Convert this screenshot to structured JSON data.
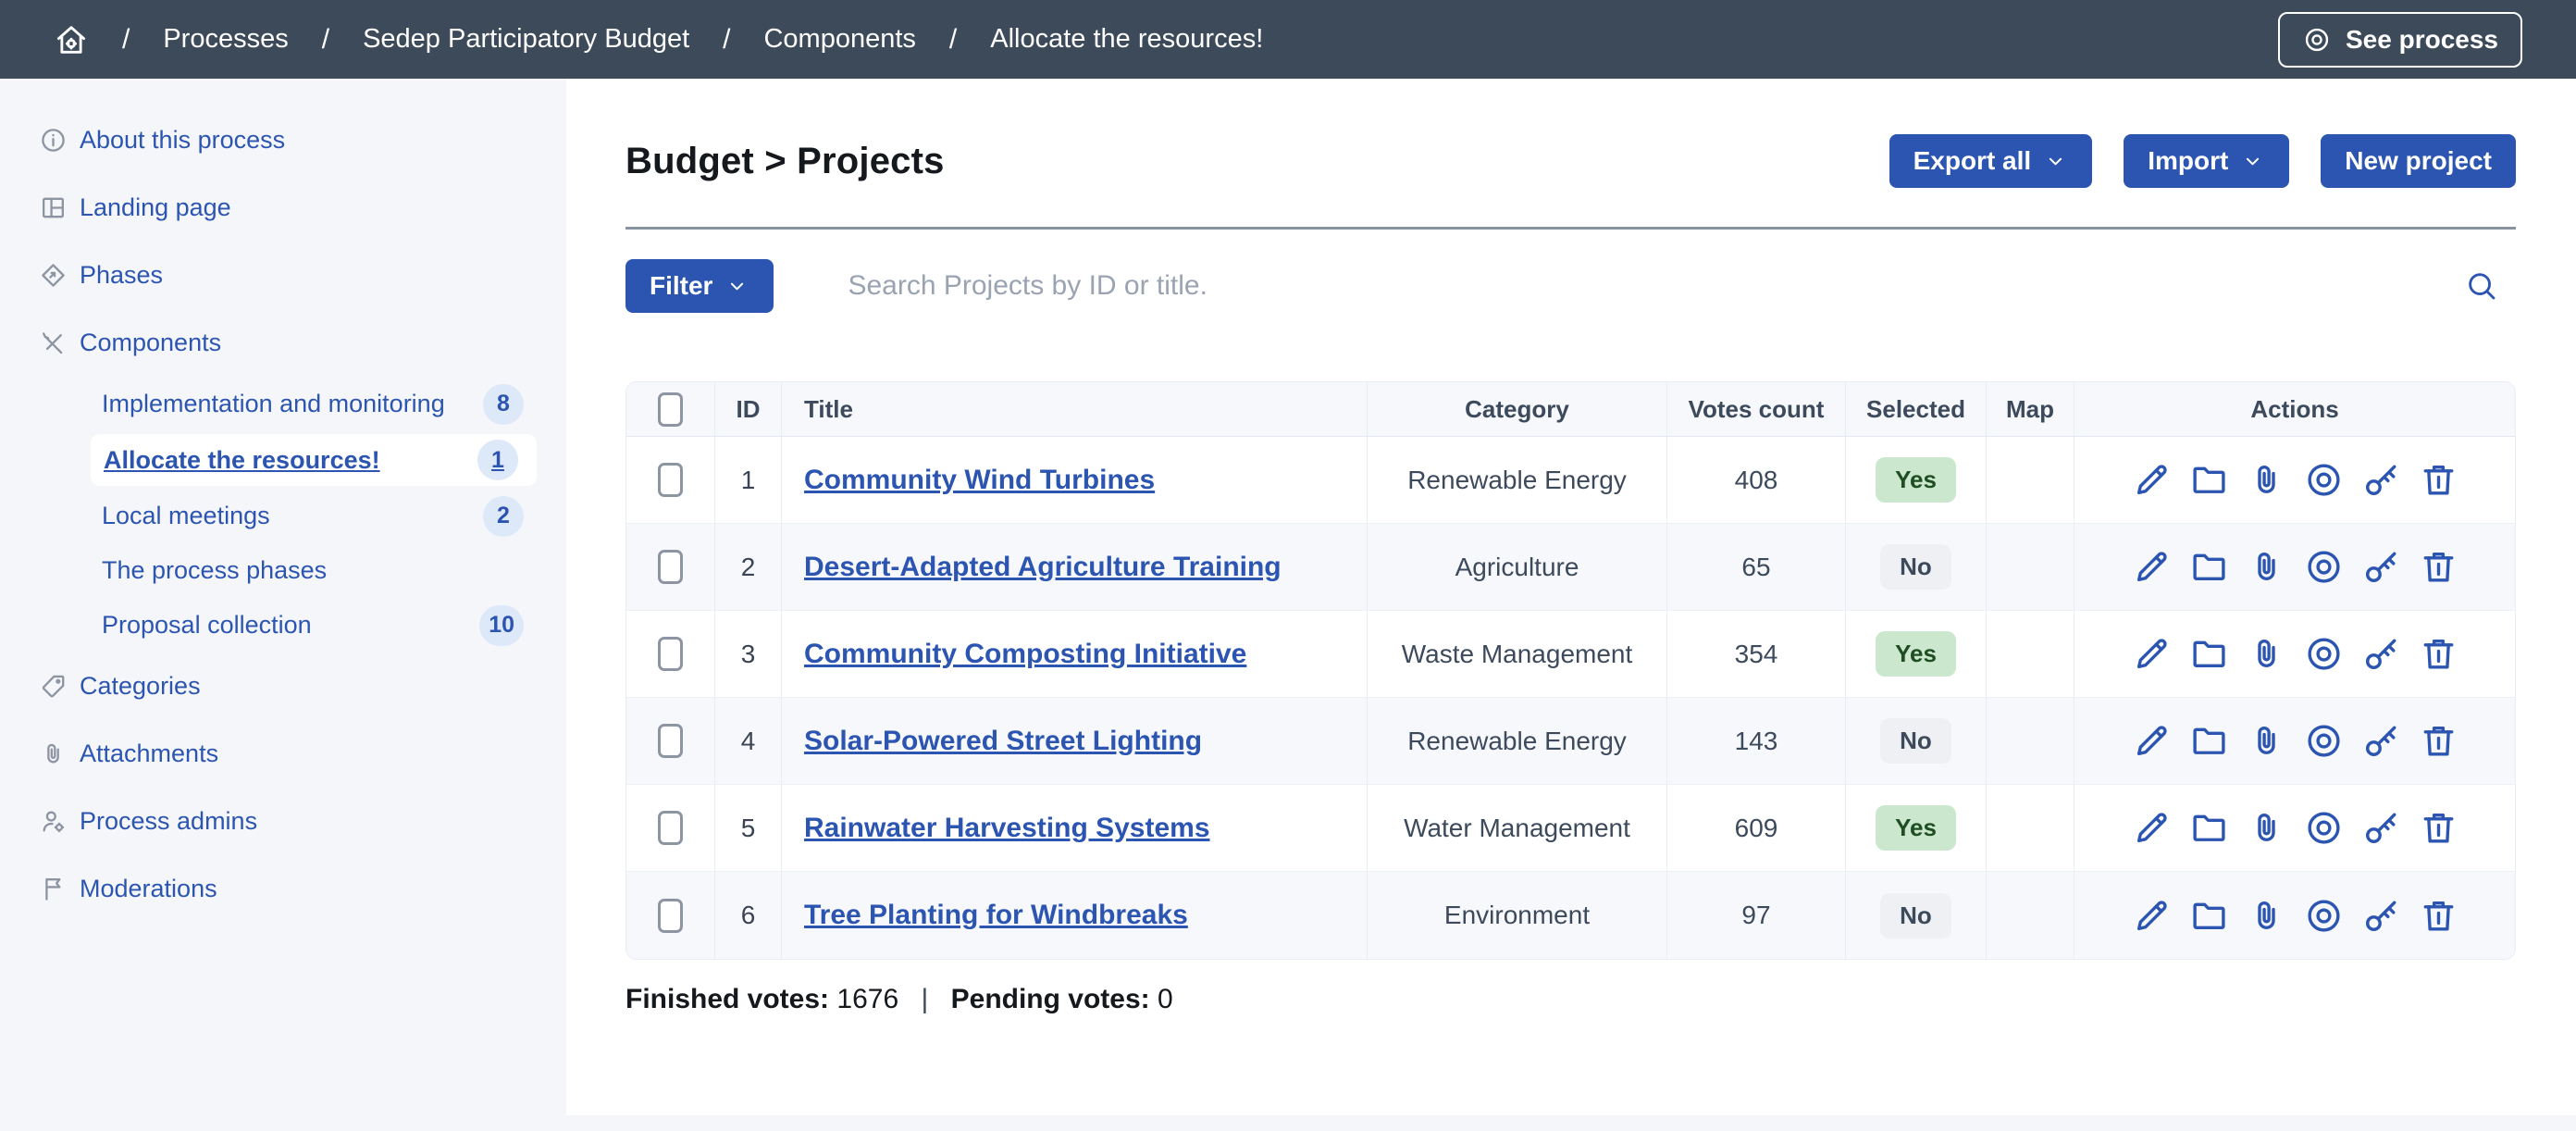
{
  "topbar": {
    "breadcrumb": [
      "Processes",
      "Sedep Participatory Budget",
      "Components",
      "Allocate the resources!"
    ],
    "separator": "/",
    "see_process_label": "See process"
  },
  "sidebar": {
    "items": [
      {
        "label": "About this process",
        "icon": "info-icon"
      },
      {
        "label": "Landing page",
        "icon": "landing-page-icon"
      },
      {
        "label": "Phases",
        "icon": "phases-icon"
      },
      {
        "label": "Components",
        "icon": "components-icon",
        "children": [
          {
            "label": "Implementation and monitoring",
            "badge": "8",
            "active": false
          },
          {
            "label": "Allocate the resources!",
            "badge": "1",
            "active": true
          },
          {
            "label": "Local meetings",
            "badge": "2",
            "active": false
          },
          {
            "label": "The process phases",
            "badge": null,
            "active": false
          },
          {
            "label": "Proposal collection",
            "badge": "10",
            "active": false
          }
        ]
      }
    ],
    "bottom_items": [
      {
        "label": "Categories",
        "icon": "categories-tag-icon"
      },
      {
        "label": "Attachments",
        "icon": "attachments-paperclip-icon"
      },
      {
        "label": "Process admins",
        "icon": "process-admins-icon"
      },
      {
        "label": "Moderations",
        "icon": "moderations-flag-icon"
      }
    ]
  },
  "main": {
    "title": "Budget > Projects",
    "toolbar": {
      "export_all": "Export all",
      "import": "Import",
      "new_project": "New project"
    },
    "filter": {
      "label": "Filter",
      "search_placeholder": "Search Projects by ID or title."
    },
    "table": {
      "headers": [
        "ID",
        "Title",
        "Category",
        "Votes count",
        "Selected",
        "Map",
        "Actions"
      ],
      "row_actions": [
        {
          "name": "edit",
          "icon": "pencil-icon"
        },
        {
          "name": "folders",
          "icon": "folder-icon"
        },
        {
          "name": "attachments",
          "icon": "paperclip-icon"
        },
        {
          "name": "preview",
          "icon": "preview-eye-icon"
        },
        {
          "name": "permissions",
          "icon": "key-icon"
        },
        {
          "name": "delete",
          "icon": "trash-icon"
        }
      ],
      "rows": [
        {
          "id": "1",
          "title": "Community Wind Turbines",
          "category": "Renewable Energy",
          "votes": "408",
          "selected": "Yes"
        },
        {
          "id": "2",
          "title": "Desert-Adapted Agriculture Training",
          "category": "Agriculture",
          "votes": "65",
          "selected": "No"
        },
        {
          "id": "3",
          "title": "Community Composting Initiative",
          "category": "Waste Management",
          "votes": "354",
          "selected": "Yes"
        },
        {
          "id": "4",
          "title": "Solar-Powered Street Lighting",
          "category": "Renewable Energy",
          "votes": "143",
          "selected": "No"
        },
        {
          "id": "5",
          "title": "Rainwater Harvesting Systems",
          "category": "Water Management",
          "votes": "609",
          "selected": "Yes"
        },
        {
          "id": "6",
          "title": "Tree Planting for Windbreaks",
          "category": "Environment",
          "votes": "97",
          "selected": "No"
        }
      ]
    },
    "footer": {
      "finished_label": "Finished votes:",
      "finished_value": "1676",
      "pending_label": "Pending votes:",
      "pending_value": "0"
    }
  },
  "colors": {
    "primary_blue": "#2c55b1",
    "topbar_background": "#3d4a5a",
    "sidebar_background": "#f5f6f9",
    "selected_yes_background": "#cbe7cd",
    "selected_yes_text": "#1f4e23",
    "selected_no_background": "#eef0f4",
    "table_alt_row": "#f7f8fc"
  }
}
